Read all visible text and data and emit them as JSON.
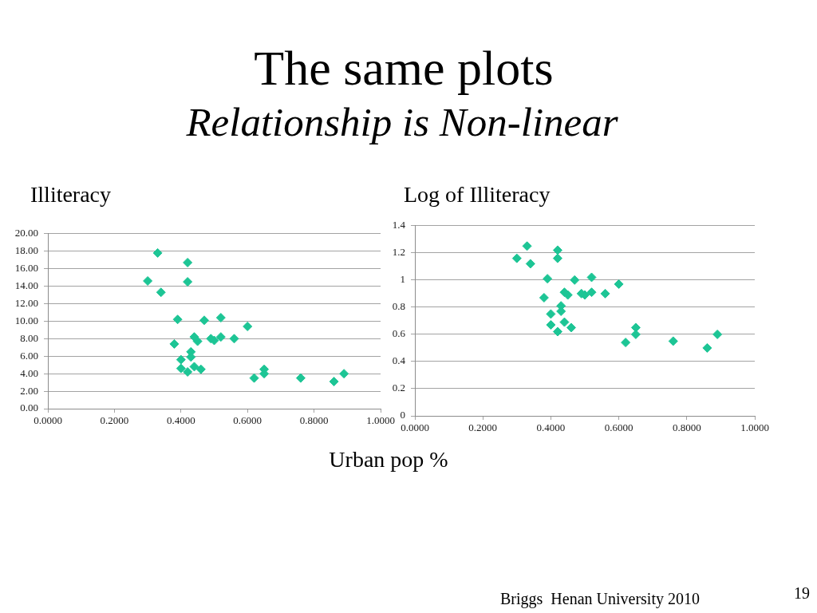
{
  "chart_data": [
    {
      "type": "scatter",
      "title": "The same plots",
      "subtitle": "Relationship is Non-linear",
      "ylabel": "Illiteracy",
      "xlabel": "Urban pop %",
      "annotations": [
        "Briggs  Henan University 2010",
        "19"
      ],
      "x": [
        0.33,
        0.42,
        0.3,
        0.42,
        0.34,
        0.39,
        0.47,
        0.52,
        0.6,
        0.44,
        0.45,
        0.49,
        0.5,
        0.52,
        0.56,
        0.38,
        0.43,
        0.43,
        0.4,
        0.4,
        0.44,
        0.46,
        0.42,
        0.65,
        0.65,
        0.62,
        0.76,
        0.86,
        0.89
      ],
      "series": [
        {
          "color": "#1dc595",
          "values": [
            17.8,
            16.7,
            14.6,
            14.5,
            13.3,
            10.2,
            10.1,
            10.4,
            9.4,
            8.2,
            7.7,
            8.0,
            7.8,
            8.2,
            8.0,
            7.4,
            6.5,
            5.9,
            5.6,
            4.6,
            4.8,
            4.5,
            4.2,
            4.5,
            4.0,
            3.5,
            3.5,
            3.1,
            4.0
          ]
        }
      ],
      "xlim": [
        0,
        1
      ],
      "xticks": [
        {
          "value": 0,
          "label": "0.0000"
        },
        {
          "value": 0.2,
          "label": "0.2000"
        },
        {
          "value": 0.4,
          "label": "0.4000"
        },
        {
          "value": 0.6,
          "label": "0.6000"
        },
        {
          "value": 0.8,
          "label": "0.8000"
        },
        {
          "value": 1,
          "label": "1.0000"
        }
      ],
      "ylim": [
        0,
        20
      ],
      "yticks": [
        {
          "value": 0,
          "label": "0.00"
        },
        {
          "value": 2,
          "label": "2.00"
        },
        {
          "value": 4,
          "label": "4.00"
        },
        {
          "value": 6,
          "label": "6.00"
        },
        {
          "value": 8,
          "label": "8.00"
        },
        {
          "value": 10,
          "label": "10.00"
        },
        {
          "value": 12,
          "label": "12.00"
        },
        {
          "value": 14,
          "label": "14.00"
        },
        {
          "value": 16,
          "label": "16.00"
        },
        {
          "value": 18,
          "label": "18.00"
        },
        {
          "value": 20,
          "label": "20.00"
        }
      ],
      "grid": "y",
      "marker": "diamond"
    },
    {
      "type": "scatter",
      "ylabel": "Log of Illiteracy",
      "x": [
        0.3,
        0.33,
        0.34,
        0.42,
        0.42,
        0.39,
        0.47,
        0.38,
        0.44,
        0.45,
        0.49,
        0.5,
        0.43,
        0.43,
        0.4,
        0.4,
        0.44,
        0.42,
        0.46,
        0.52,
        0.6,
        0.52,
        0.56,
        0.65,
        0.65,
        0.62,
        0.76,
        0.86,
        0.89
      ],
      "series": [
        {
          "color": "#1dc595",
          "values": [
            1.16,
            1.25,
            1.12,
            1.22,
            1.16,
            1.01,
            1.0,
            0.87,
            0.91,
            0.89,
            0.9,
            0.89,
            0.81,
            0.77,
            0.75,
            0.67,
            0.69,
            0.62,
            0.65,
            1.02,
            0.97,
            0.91,
            0.9,
            0.65,
            0.6,
            0.54,
            0.55,
            0.5,
            0.6
          ]
        }
      ],
      "xlim": [
        0,
        1
      ],
      "xticks": [
        {
          "value": 0,
          "label": "0.0000"
        },
        {
          "value": 0.2,
          "label": "0.2000"
        },
        {
          "value": 0.4,
          "label": "0.4000"
        },
        {
          "value": 0.6,
          "label": "0.6000"
        },
        {
          "value": 0.8,
          "label": "0.8000"
        },
        {
          "value": 1,
          "label": "1.0000"
        }
      ],
      "ylim": [
        0,
        1.4
      ],
      "yticks": [
        0,
        0.2,
        0.4,
        0.6,
        0.8,
        1,
        1.2,
        1.4
      ],
      "grid": "y",
      "marker": "diamond"
    }
  ]
}
